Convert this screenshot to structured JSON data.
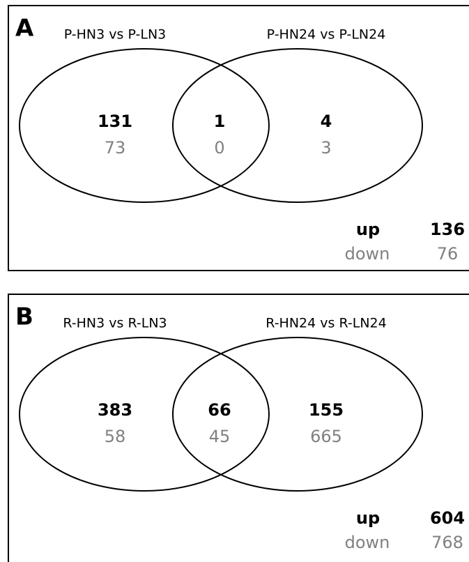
{
  "panels": [
    {
      "label": "A",
      "sets": [
        "P-HN3 vs P-LN3",
        "P-HN24 vs P-LN24"
      ],
      "regions": [
        {
          "up": 131,
          "down": 73
        },
        {
          "up": 1,
          "down": 0
        },
        {
          "up": 4,
          "down": 3
        }
      ],
      "legend": {
        "up_label": "up",
        "down_label": "down",
        "up_total": 136,
        "down_total": 76
      }
    },
    {
      "label": "B",
      "sets": [
        "R-HN3 vs R-LN3",
        "R-HN24 vs R-LN24"
      ],
      "regions": [
        {
          "up": 383,
          "down": 58
        },
        {
          "up": 66,
          "down": 45
        },
        {
          "up": 155,
          "down": 665
        }
      ],
      "legend": {
        "up_label": "up",
        "down_label": "down",
        "up_total": 604,
        "down_total": 768
      }
    }
  ]
}
